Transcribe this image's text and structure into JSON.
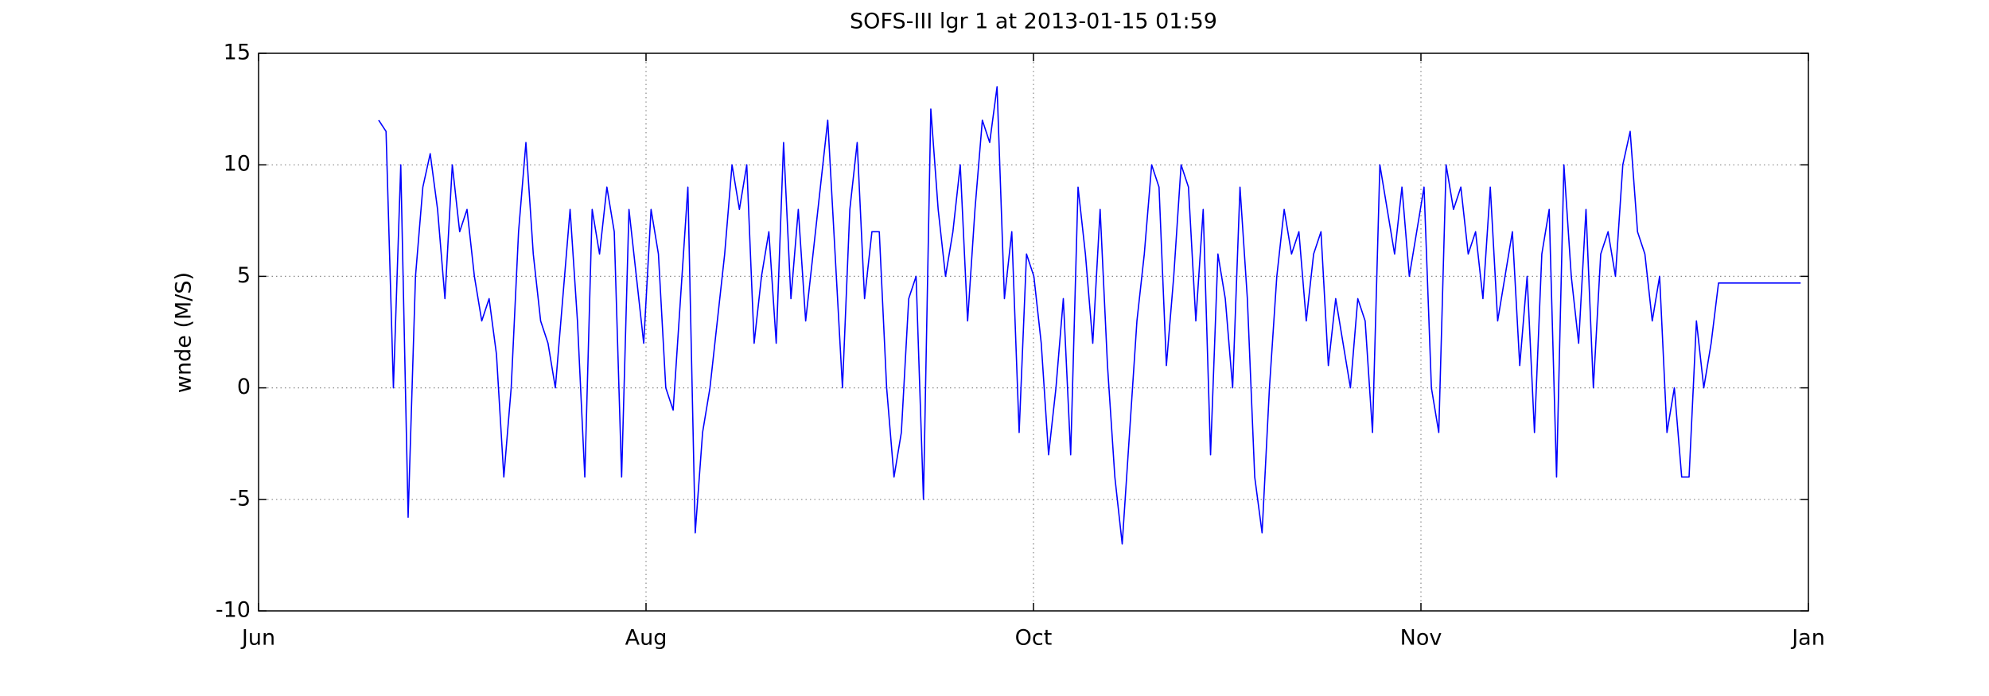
{
  "chart_data": {
    "type": "line",
    "title": "SOFS-III lgr 1 at 2013-01-15 01:59",
    "y_label": "wnde (M/S)",
    "xlim": [
      0,
      4
    ],
    "xticks": [
      {
        "value": 0,
        "label": "Jun"
      },
      {
        "value": 1,
        "label": "Aug"
      },
      {
        "value": 2,
        "label": "Oct"
      },
      {
        "value": 3,
        "label": "Nov"
      },
      {
        "value": 4,
        "label": "Jan"
      }
    ],
    "ylim": [
      -10,
      15
    ],
    "yticks": [
      -10,
      -5,
      0,
      5,
      10,
      15
    ],
    "grid": true,
    "series": [
      {
        "color": "#0000ff",
        "x": [
          0.31,
          0.329,
          0.348,
          0.367,
          0.386,
          0.405,
          0.424,
          0.443,
          0.462,
          0.481,
          0.5,
          0.519,
          0.538,
          0.557,
          0.576,
          0.595,
          0.614,
          0.633,
          0.652,
          0.671,
          0.69,
          0.709,
          0.728,
          0.747,
          0.766,
          0.785,
          0.804,
          0.823,
          0.842,
          0.861,
          0.88,
          0.899,
          0.918,
          0.937,
          0.956,
          0.975,
          0.994,
          1.013,
          1.032,
          1.051,
          1.07,
          1.089,
          1.108,
          1.127,
          1.146,
          1.165,
          1.184,
          1.203,
          1.222,
          1.241,
          1.26,
          1.279,
          1.298,
          1.317,
          1.336,
          1.355,
          1.374,
          1.393,
          1.412,
          1.431,
          1.45,
          1.469,
          1.488,
          1.507,
          1.526,
          1.545,
          1.564,
          1.583,
          1.602,
          1.621,
          1.64,
          1.659,
          1.678,
          1.697,
          1.716,
          1.735,
          1.754,
          1.773,
          1.792,
          1.811,
          1.83,
          1.849,
          1.868,
          1.887,
          1.906,
          1.925,
          1.944,
          1.963,
          1.982,
          2.001,
          2.02,
          2.039,
          2.058,
          2.077,
          2.096,
          2.115,
          2.134,
          2.153,
          2.172,
          2.191,
          2.21,
          2.229,
          2.248,
          2.267,
          2.286,
          2.305,
          2.324,
          2.343,
          2.362,
          2.381,
          2.4,
          2.419,
          2.438,
          2.457,
          2.476,
          2.495,
          2.514,
          2.533,
          2.552,
          2.571,
          2.59,
          2.609,
          2.628,
          2.647,
          2.666,
          2.685,
          2.704,
          2.723,
          2.742,
          2.761,
          2.78,
          2.799,
          2.818,
          2.837,
          2.856,
          2.875,
          2.894,
          2.913,
          2.932,
          2.951,
          2.97,
          2.989,
          3.008,
          3.027,
          3.046,
          3.065,
          3.084,
          3.103,
          3.122,
          3.141,
          3.16,
          3.179,
          3.198,
          3.217,
          3.236,
          3.255,
          3.274,
          3.293,
          3.312,
          3.331,
          3.35,
          3.369,
          3.388,
          3.407,
          3.426,
          3.445,
          3.464,
          3.483,
          3.502,
          3.521,
          3.54,
          3.559,
          3.578,
          3.597,
          3.616,
          3.635,
          3.654,
          3.673,
          3.692,
          3.711,
          3.73,
          3.749,
          3.768,
          3.98
        ],
        "values": [
          12,
          11.5,
          0,
          10,
          -5.8,
          5,
          9,
          10.5,
          8,
          4,
          10,
          7,
          8,
          5,
          3,
          4,
          1.5,
          -4,
          0,
          7,
          11,
          6,
          3,
          2,
          0,
          4,
          8,
          3,
          -4,
          8,
          6,
          9,
          7,
          -4,
          8,
          5,
          2,
          8,
          6,
          0,
          -1,
          4,
          9,
          -6.5,
          -2,
          0,
          3,
          6,
          10,
          8,
          10,
          2,
          5,
          7,
          2,
          11,
          4,
          8,
          3,
          6,
          9,
          12,
          6,
          0,
          8,
          11,
          4,
          7,
          7,
          0,
          -4,
          -2,
          4,
          5,
          -5,
          12.5,
          8,
          5,
          7,
          10,
          3,
          8,
          12,
          11,
          13.5,
          4,
          7,
          -2,
          6,
          5,
          2,
          -3,
          0,
          4,
          -3,
          9,
          6,
          2,
          8,
          1,
          -4,
          -7,
          -2,
          3,
          6,
          10,
          9,
          1,
          5,
          10,
          9,
          3,
          8,
          -3,
          6,
          4,
          0,
          9,
          4,
          -4,
          -6.5,
          0,
          5,
          8,
          6,
          7,
          3,
          6,
          7,
          1,
          4,
          2,
          0,
          4,
          3,
          -2,
          10,
          8,
          6,
          9,
          5,
          7,
          9,
          0,
          -2,
          10,
          8,
          9,
          6,
          7,
          4,
          9,
          3,
          5,
          7,
          1,
          5,
          -2,
          6,
          8,
          -4,
          10,
          5,
          2,
          8,
          0,
          6,
          7,
          5,
          10,
          11.5,
          7,
          6,
          3,
          5,
          -2,
          0,
          -4,
          -4,
          3,
          0,
          2,
          4.7,
          4.7
        ]
      }
    ]
  }
}
